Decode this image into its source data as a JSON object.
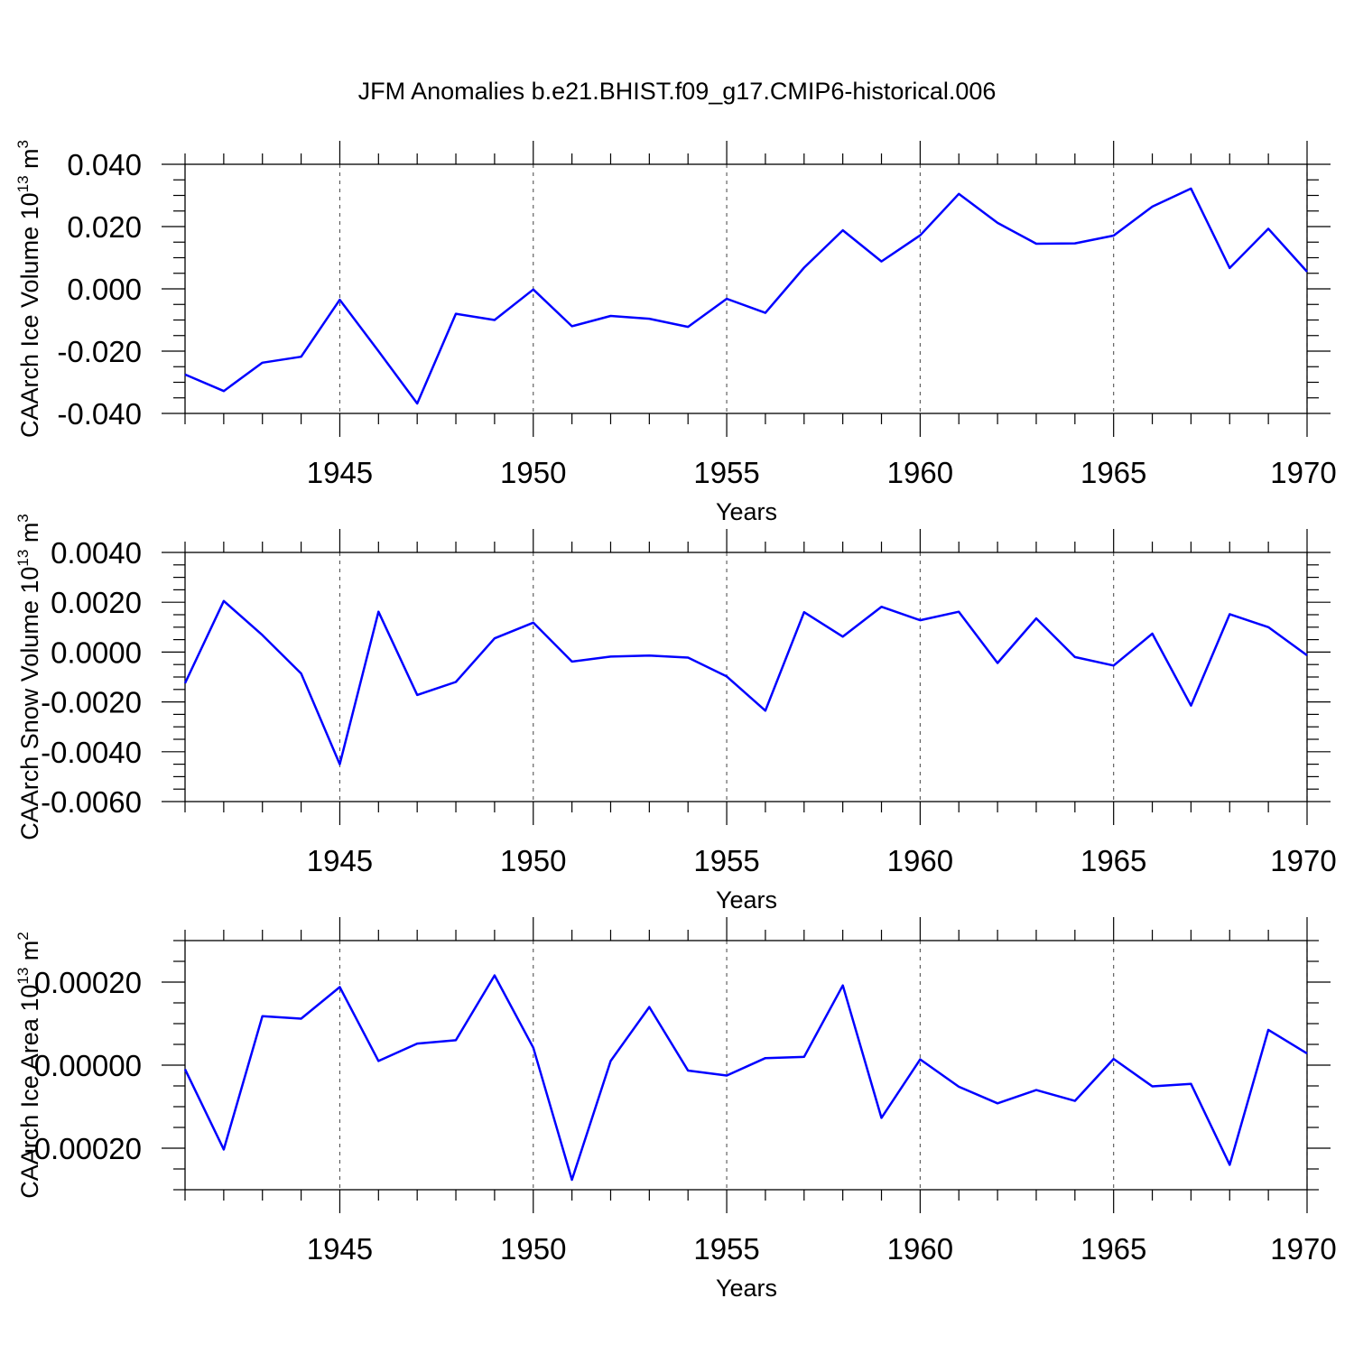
{
  "figure": {
    "title": "JFM Anomalies b.e21.BHIST.f09_g17.CMIP6-historical.006",
    "line_color": "#0000ff"
  },
  "chart_data": [
    {
      "type": "line",
      "xlabel": "Years",
      "ylabel": "CAArch Ice Volume 10",
      "ylabel_exp": "13",
      "ylabel_unit": " m",
      "ylabel_unit_exp": "3",
      "xlim": [
        1941,
        1970
      ],
      "ylim": [
        -0.04,
        0.04
      ],
      "x_ticks": [
        1945,
        1950,
        1955,
        1960,
        1965,
        1970
      ],
      "x_tick_labels": [
        "1945",
        "1950",
        "1955",
        "1960",
        "1965",
        "1970"
      ],
      "y_ticks": [
        -0.04,
        -0.02,
        0.0,
        0.02,
        0.04
      ],
      "y_tick_labels": [
        "-0.040",
        "-0.020",
        "0.000",
        "0.020",
        "0.040"
      ],
      "grid": "vertical dashed at major x ticks",
      "x": [
        1941,
        1942,
        1943,
        1944,
        1945,
        1946,
        1947,
        1948,
        1949,
        1950,
        1951,
        1952,
        1953,
        1954,
        1955,
        1956,
        1957,
        1958,
        1959,
        1960,
        1961,
        1962,
        1963,
        1964,
        1965,
        1966,
        1967,
        1968,
        1969,
        1970
      ],
      "values": [
        -0.0275,
        -0.0328,
        -0.0237,
        -0.0218,
        -0.0035,
        -0.02,
        -0.0368,
        -0.008,
        -0.01,
        -0.0002,
        -0.012,
        -0.0087,
        -0.0096,
        -0.0122,
        -0.0032,
        -0.0077,
        0.0068,
        0.0188,
        0.0088,
        0.0172,
        0.0305,
        0.0212,
        0.0145,
        0.0146,
        0.0171,
        0.0264,
        0.0322,
        0.0067,
        0.0193,
        0.0055
      ]
    },
    {
      "type": "line",
      "xlabel": "Years",
      "ylabel": "CAArch Snow Volume 10",
      "ylabel_exp": "13",
      "ylabel_unit": " m",
      "ylabel_unit_exp": "3",
      "xlim": [
        1941,
        1970
      ],
      "ylim": [
        -0.006,
        0.004
      ],
      "x_ticks": [
        1945,
        1950,
        1955,
        1960,
        1965,
        1970
      ],
      "x_tick_labels": [
        "1945",
        "1950",
        "1955",
        "1960",
        "1965",
        "1970"
      ],
      "y_ticks": [
        -0.006,
        -0.004,
        -0.002,
        0.0,
        0.002,
        0.004
      ],
      "y_tick_labels": [
        "-0.0060",
        "-0.0040",
        "-0.0020",
        "0.0000",
        "0.0020",
        "0.0040"
      ],
      "grid": "vertical dashed at major x ticks",
      "x": [
        1941,
        1942,
        1943,
        1944,
        1945,
        1946,
        1947,
        1948,
        1949,
        1950,
        1951,
        1952,
        1953,
        1954,
        1955,
        1956,
        1957,
        1958,
        1959,
        1960,
        1961,
        1962,
        1963,
        1964,
        1965,
        1966,
        1967,
        1968,
        1969,
        1970
      ],
      "values": [
        -0.00125,
        0.00205,
        0.00068,
        -0.00086,
        -0.0045,
        0.00162,
        -0.00172,
        -0.0012,
        0.00055,
        0.00118,
        -0.00038,
        -0.00018,
        -0.00014,
        -0.00022,
        -0.00098,
        -0.00235,
        0.0016,
        0.00062,
        0.00182,
        0.00128,
        0.00162,
        -0.00044,
        0.00135,
        -0.0002,
        -0.00054,
        0.00074,
        -0.00215,
        0.00152,
        0.001,
        -0.00013
      ]
    },
    {
      "type": "line",
      "xlabel": "Years",
      "ylabel": "CAArch Ice Area 10",
      "ylabel_exp": "13",
      "ylabel_unit": " m",
      "ylabel_unit_exp": "2",
      "xlim": [
        1941,
        1970
      ],
      "ylim": [
        -0.0003,
        0.0003
      ],
      "x_ticks": [
        1945,
        1950,
        1955,
        1960,
        1965,
        1970
      ],
      "x_tick_labels": [
        "1945",
        "1950",
        "1955",
        "1960",
        "1965",
        "1970"
      ],
      "y_ticks": [
        -0.0002,
        0.0,
        0.0002
      ],
      "y_tick_labels": [
        "-0.00020",
        "0.00000",
        "0.00020"
      ],
      "grid": "vertical dashed at major x ticks",
      "x": [
        1941,
        1942,
        1943,
        1944,
        1945,
        1946,
        1947,
        1948,
        1949,
        1950,
        1951,
        1952,
        1953,
        1954,
        1955,
        1956,
        1957,
        1958,
        1959,
        1960,
        1961,
        1962,
        1963,
        1964,
        1965,
        1966,
        1967,
        1968,
        1969,
        1970
      ],
      "values": [
        -1e-05,
        -0.000203,
        0.000118,
        0.000112,
        0.000188,
        1e-05,
        5.2e-05,
        6e-05,
        0.000216,
        4.2e-05,
        -0.000276,
        1e-05,
        0.00014,
        -1.3e-05,
        -2.5e-05,
        1.7e-05,
        2e-05,
        0.000192,
        -0.000127,
        1.4e-05,
        -5.2e-05,
        -9.2e-05,
        -6e-05,
        -8.6e-05,
        1.5e-05,
        -5.1e-05,
        -4.5e-05,
        -0.00024,
        8.5e-05,
        2.8e-05
      ]
    }
  ]
}
